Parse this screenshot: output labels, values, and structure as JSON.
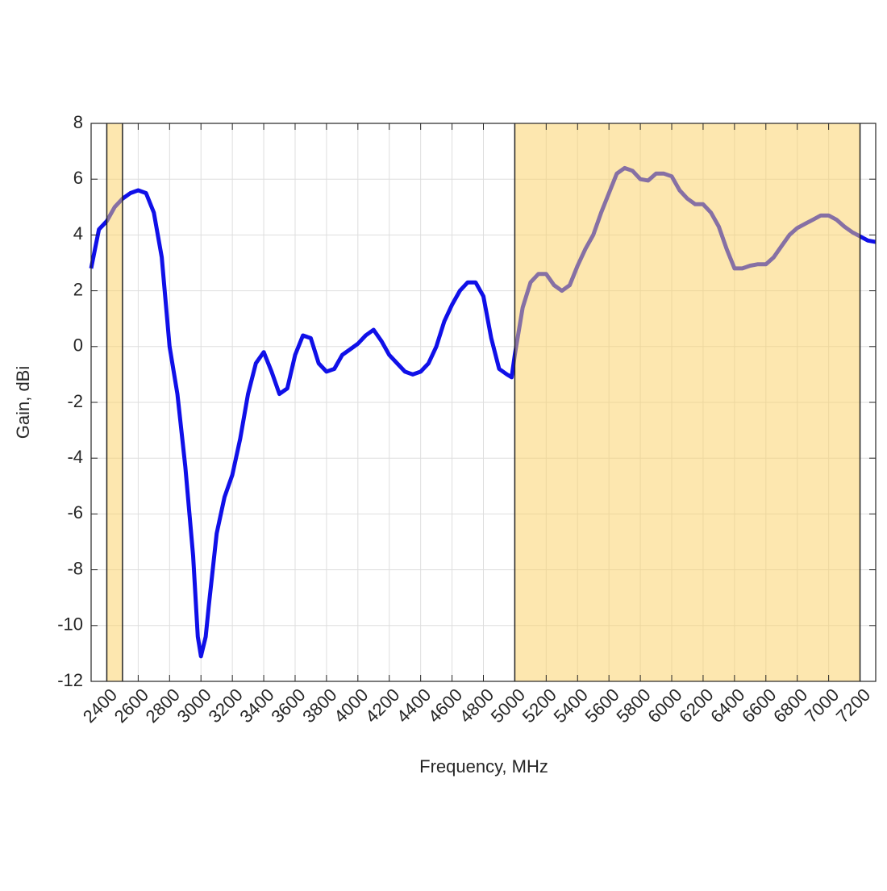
{
  "chart_data": {
    "type": "line",
    "xlabel": "Frequency, MHz",
    "ylabel": "Gain, dBi",
    "x": [
      2300,
      2350,
      2400,
      2450,
      2500,
      2550,
      2600,
      2650,
      2700,
      2750,
      2800,
      2850,
      2900,
      2950,
      2980,
      3000,
      3030,
      3050,
      3100,
      3150,
      3200,
      3250,
      3300,
      3350,
      3400,
      3450,
      3500,
      3550,
      3600,
      3650,
      3700,
      3750,
      3800,
      3850,
      3900,
      3950,
      4000,
      4050,
      4100,
      4150,
      4200,
      4250,
      4300,
      4350,
      4400,
      4450,
      4500,
      4550,
      4600,
      4650,
      4700,
      4750,
      4800,
      4850,
      4900,
      4950,
      4980,
      5000,
      5050,
      5100,
      5150,
      5200,
      5250,
      5300,
      5350,
      5400,
      5450,
      5500,
      5550,
      5600,
      5650,
      5700,
      5750,
      5800,
      5850,
      5900,
      5950,
      6000,
      6050,
      6100,
      6150,
      6200,
      6250,
      6300,
      6350,
      6400,
      6450,
      6500,
      6550,
      6600,
      6650,
      6700,
      6750,
      6800,
      6850,
      6900,
      6950,
      7000,
      7050,
      7100,
      7150,
      7200,
      7250,
      7300
    ],
    "series": [
      {
        "color": "#1010e8",
        "values": [
          2.8,
          4.2,
          4.5,
          5.0,
          5.3,
          5.5,
          5.6,
          5.5,
          4.8,
          3.2,
          0,
          -1.7,
          -4.3,
          -7.5,
          -10.4,
          -11.1,
          -10.4,
          -9.3,
          -6.7,
          -5.4,
          -4.6,
          -3.3,
          -1.7,
          -0.6,
          -0.2,
          -0.9,
          -1.7,
          -1.5,
          -0.3,
          0.4,
          0.3,
          -0.6,
          -0.9,
          -0.8,
          -0.3,
          -0.1,
          0.1,
          0.4,
          0.6,
          0.2,
          -0.3,
          -0.6,
          -0.9,
          -1.0,
          -0.9,
          -0.6,
          0,
          0.9,
          1.5,
          2.0,
          2.3,
          2.3,
          1.8,
          0.3,
          -0.8,
          -1.0,
          -1.1,
          -0.3,
          1.4,
          2.3,
          2.6,
          2.6,
          2.2,
          2.0,
          2.2,
          2.9,
          3.5,
          4.0,
          4.8,
          5.5,
          6.2,
          6.4,
          6.3,
          6.0,
          5.95,
          6.2,
          6.2,
          6.1,
          5.6,
          5.3,
          5.1,
          5.1,
          4.8,
          4.3,
          3.5,
          2.8,
          2.8,
          2.9,
          2.95,
          2.95,
          3.2,
          3.6,
          4.0,
          4.25,
          4.4,
          4.55,
          4.7,
          4.7,
          4.55,
          4.3,
          4.1,
          3.95,
          3.8,
          3.75
        ]
      }
    ],
    "xlim": [
      2300,
      7300
    ],
    "ylim": [
      -12,
      8
    ],
    "xticks": [
      2400,
      2600,
      2800,
      3000,
      3200,
      3400,
      3600,
      3800,
      4000,
      4200,
      4400,
      4600,
      4800,
      5000,
      5200,
      5400,
      5600,
      5800,
      6000,
      6200,
      6400,
      6600,
      6800,
      7000,
      7200
    ],
    "yticks": [
      -12,
      -10,
      -8,
      -6,
      -4,
      -2,
      0,
      2,
      4,
      6,
      8
    ],
    "grid": true,
    "bands": [
      [
        2400,
        2500
      ],
      [
        5000,
        7200
      ]
    ],
    "band_color": "#fbd060"
  }
}
